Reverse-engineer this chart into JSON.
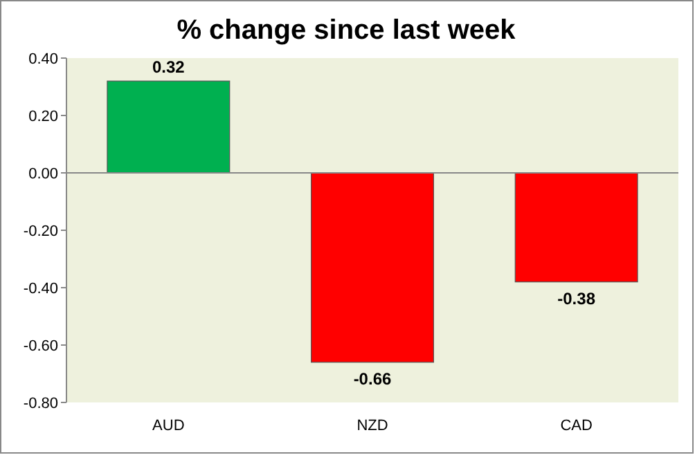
{
  "chart_data": {
    "type": "bar",
    "title": "% change since last week",
    "categories": [
      "AUD",
      "NZD",
      "CAD"
    ],
    "values": [
      0.32,
      -0.66,
      -0.38
    ],
    "colors": [
      "#00b050",
      "#ff0000",
      "#ff0000"
    ],
    "ylim": [
      -0.8,
      0.4
    ],
    "yticks": [
      {
        "value": 0.4,
        "label": "0.40"
      },
      {
        "value": 0.2,
        "label": "0.20"
      },
      {
        "value": 0,
        "label": "0.00"
      },
      {
        "value": -0.2,
        "label": "-0.20"
      },
      {
        "value": -0.4,
        "label": "-0.40"
      },
      {
        "value": -0.6,
        "label": "-0.60"
      },
      {
        "value": -0.8,
        "label": "-0.80"
      }
    ],
    "data_labels": true
  }
}
